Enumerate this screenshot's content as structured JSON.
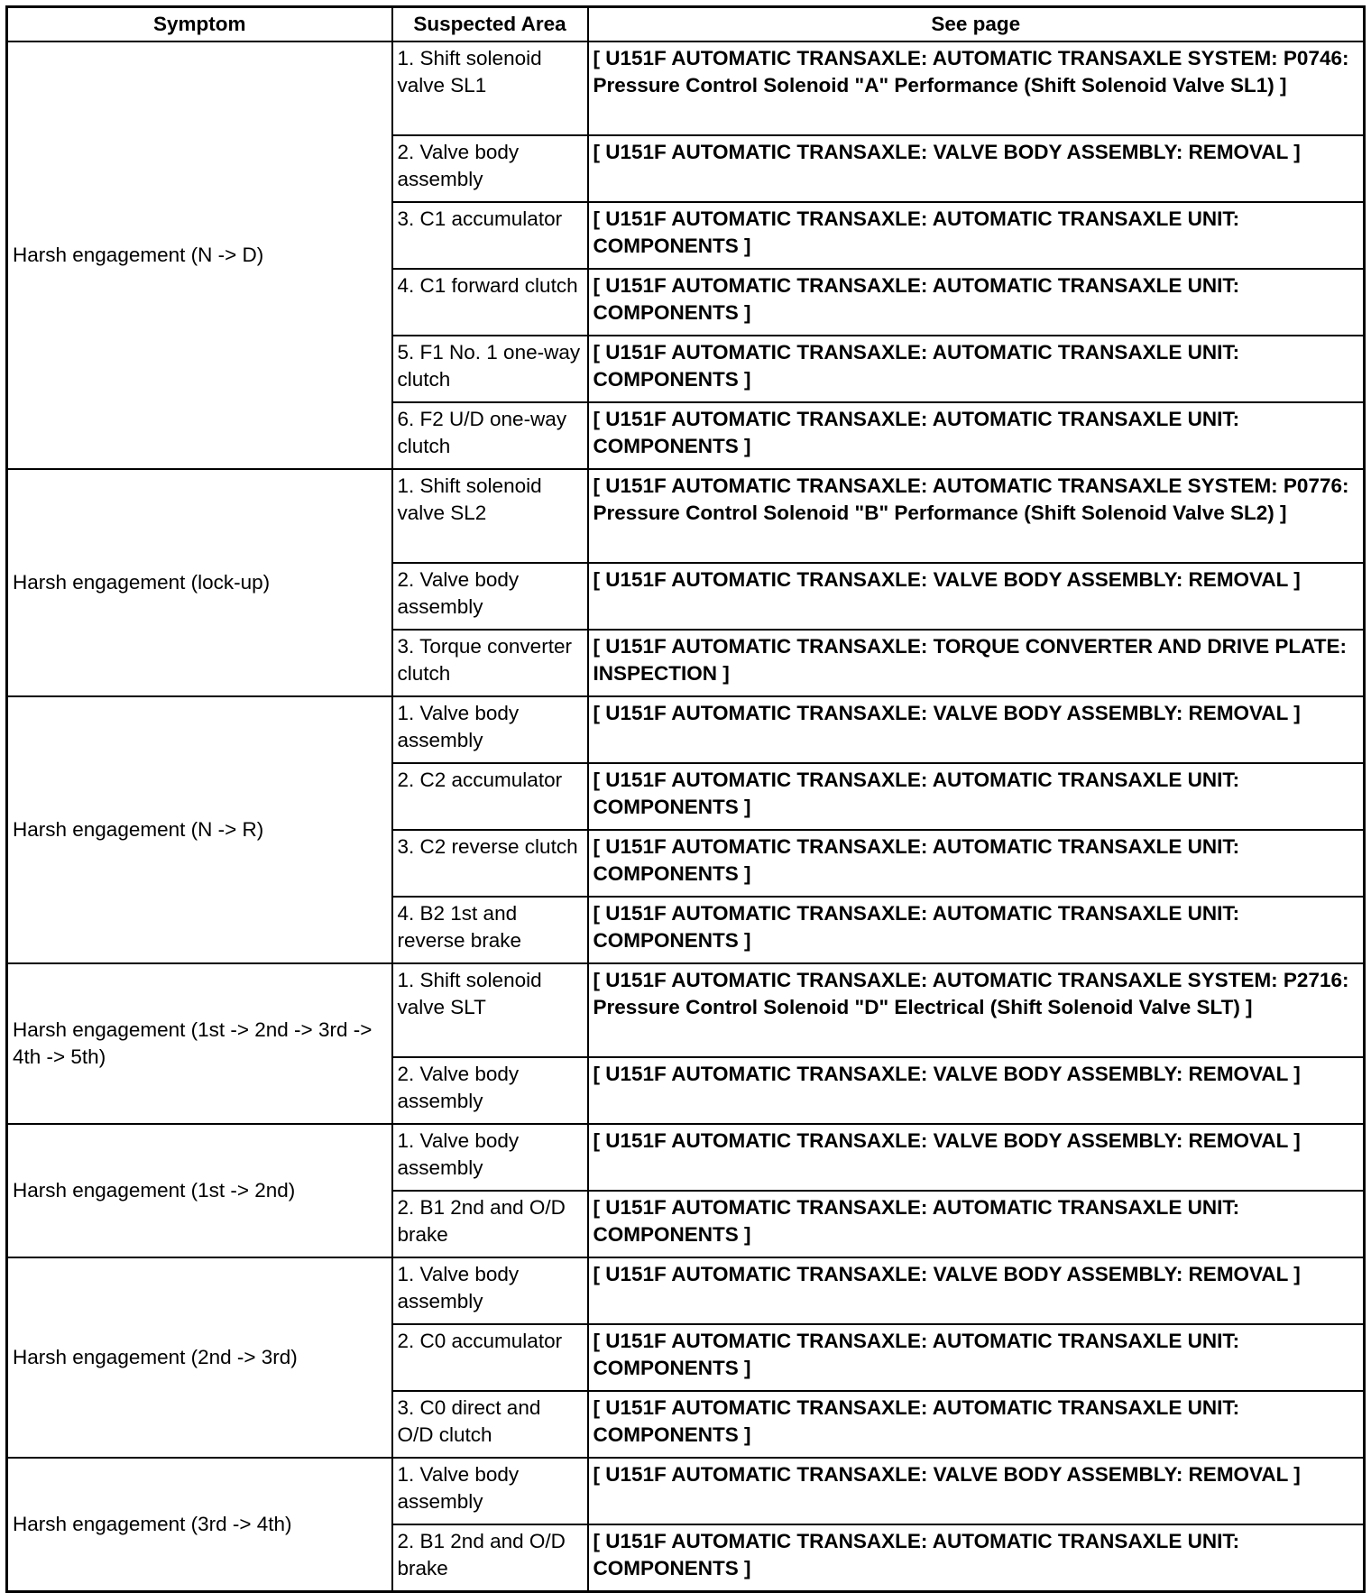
{
  "headers": [
    "Symptom",
    "Suspected Area",
    "See page"
  ],
  "groups": [
    {
      "symptom": "Harsh engagement (N -> D)",
      "rows": [
        {
          "area": "1. Shift solenoid valve SL1",
          "page": "[ U151F AUTOMATIC TRANSAXLE: AUTOMATIC TRANSAXLE SYSTEM: P0746: Pressure Control Solenoid \"A\" Performance (Shift Solenoid Valve SL1) ]"
        },
        {
          "area": "2. Valve body assembly",
          "page": "[ U151F AUTOMATIC TRANSAXLE: VALVE BODY ASSEMBLY: REMOVAL ]"
        },
        {
          "area": "3. C1 accumulator",
          "page": "[ U151F AUTOMATIC TRANSAXLE: AUTOMATIC TRANSAXLE UNIT: COMPONENTS ]"
        },
        {
          "area": "4. C1 forward clutch",
          "page": "[ U151F AUTOMATIC TRANSAXLE: AUTOMATIC TRANSAXLE UNIT: COMPONENTS ]"
        },
        {
          "area": "5. F1 No. 1 one-way clutch",
          "page": "[ U151F AUTOMATIC TRANSAXLE: AUTOMATIC TRANSAXLE UNIT: COMPONENTS ]"
        },
        {
          "area": "6. F2 U/D one-way clutch",
          "page": "[ U151F AUTOMATIC TRANSAXLE: AUTOMATIC TRANSAXLE UNIT: COMPONENTS ]"
        }
      ]
    },
    {
      "symptom": "Harsh engagement (lock-up)",
      "rows": [
        {
          "area": "1. Shift solenoid valve SL2",
          "page": "[ U151F AUTOMATIC TRANSAXLE: AUTOMATIC TRANSAXLE SYSTEM: P0776: Pressure Control Solenoid \"B\" Performance (Shift Solenoid Valve SL2) ]"
        },
        {
          "area": "2. Valve body assembly",
          "page": "[ U151F AUTOMATIC TRANSAXLE: VALVE BODY ASSEMBLY: REMOVAL ]"
        },
        {
          "area": "3. Torque converter clutch",
          "page": "[ U151F AUTOMATIC TRANSAXLE: TORQUE CONVERTER AND DRIVE PLATE: INSPECTION ]"
        }
      ]
    },
    {
      "symptom": "Harsh engagement (N -> R)",
      "rows": [
        {
          "area": "1. Valve body assembly",
          "page": "[ U151F AUTOMATIC TRANSAXLE: VALVE BODY ASSEMBLY: REMOVAL ]"
        },
        {
          "area": "2. C2 accumulator",
          "page": "[ U151F AUTOMATIC TRANSAXLE: AUTOMATIC TRANSAXLE UNIT: COMPONENTS ]"
        },
        {
          "area": "3. C2 reverse clutch",
          "page": "[ U151F AUTOMATIC TRANSAXLE: AUTOMATIC TRANSAXLE UNIT: COMPONENTS ]"
        },
        {
          "area": "4. B2 1st and reverse brake",
          "page": "[ U151F AUTOMATIC TRANSAXLE: AUTOMATIC TRANSAXLE UNIT: COMPONENTS ]"
        }
      ]
    },
    {
      "symptom": "Harsh engagement (1st -> 2nd -> 3rd -> 4th -> 5th)",
      "rows": [
        {
          "area": "1. Shift solenoid valve SLT",
          "page": "[ U151F AUTOMATIC TRANSAXLE: AUTOMATIC TRANSAXLE SYSTEM: P2716: Pressure Control Solenoid \"D\" Electrical (Shift Solenoid Valve SLT) ]"
        },
        {
          "area": "2. Valve body assembly",
          "page": "[ U151F AUTOMATIC TRANSAXLE: VALVE BODY ASSEMBLY: REMOVAL ]"
        }
      ]
    },
    {
      "symptom": "Harsh engagement (1st -> 2nd)",
      "rows": [
        {
          "area": "1. Valve body assembly",
          "page": "[ U151F AUTOMATIC TRANSAXLE: VALVE BODY ASSEMBLY: REMOVAL ]"
        },
        {
          "area": "2. B1 2nd and O/D brake",
          "page": "[ U151F AUTOMATIC TRANSAXLE: AUTOMATIC TRANSAXLE UNIT: COMPONENTS ]"
        }
      ]
    },
    {
      "symptom": "Harsh engagement (2nd -> 3rd)",
      "rows": [
        {
          "area": "1. Valve body assembly",
          "page": "[ U151F AUTOMATIC TRANSAXLE: VALVE BODY ASSEMBLY: REMOVAL ]"
        },
        {
          "area": "2. C0 accumulator",
          "page": "[ U151F AUTOMATIC TRANSAXLE: AUTOMATIC TRANSAXLE UNIT: COMPONENTS ]"
        },
        {
          "area": "3. C0 direct and O/D clutch",
          "page": "[ U151F AUTOMATIC TRANSAXLE: AUTOMATIC TRANSAXLE UNIT: COMPONENTS ]"
        }
      ]
    },
    {
      "symptom": "Harsh engagement (3rd -> 4th)",
      "rows": [
        {
          "area": "1. Valve body assembly",
          "page": "[ U151F AUTOMATIC TRANSAXLE: VALVE BODY ASSEMBLY: REMOVAL ]"
        },
        {
          "area": "2. B1 2nd and O/D brake",
          "page": "[ U151F AUTOMATIC TRANSAXLE: AUTOMATIC TRANSAXLE UNIT: COMPONENTS ]"
        }
      ]
    }
  ]
}
